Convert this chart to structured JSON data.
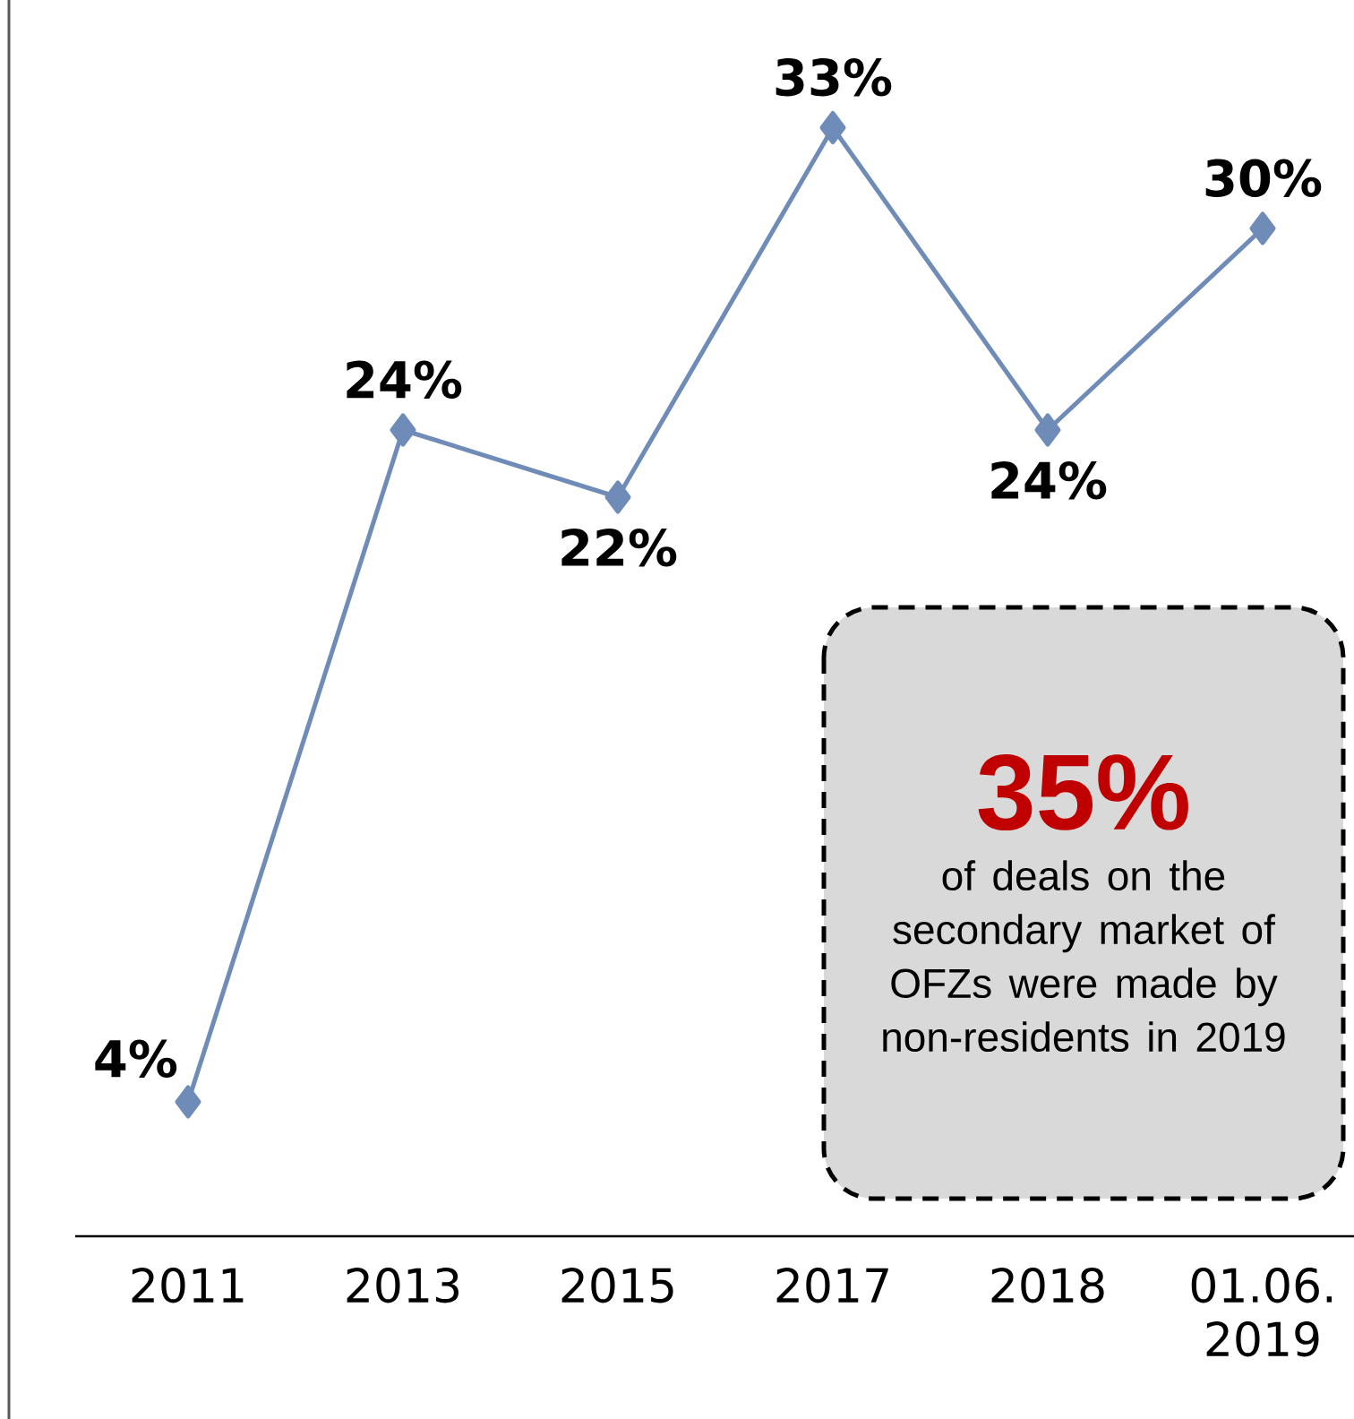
{
  "chart_data": {
    "type": "line",
    "categories": [
      "2011",
      "2013",
      "2015",
      "2017",
      "2018",
      "01.06. 2019"
    ],
    "values": [
      4,
      24,
      22,
      33,
      24,
      30
    ],
    "value_labels": [
      "4%",
      "24%",
      "22%",
      "33%",
      "24%",
      "30%"
    ],
    "color": "#6f8bb8",
    "marker": "diamond",
    "line_style": "solid",
    "annotations": [
      "35%",
      "of deals on the secondary market of OFZs were made by non-residents in 2019"
    ]
  }
}
